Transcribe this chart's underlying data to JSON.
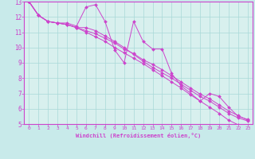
{
  "background_color": "#c8eaea",
  "plot_bg_color": "#d8f0ee",
  "grid_color": "#a8d8d8",
  "line_color": "#cc44cc",
  "marker_color": "#cc44cc",
  "border_color": "#cc44cc",
  "xlabel": "Windchill (Refroidissement éolien,°C)",
  "tick_color": "#cc44cc",
  "ylim": [
    5,
    13
  ],
  "xlim": [
    -0.5,
    23.5
  ],
  "yticks": [
    5,
    6,
    7,
    8,
    9,
    10,
    11,
    12,
    13
  ],
  "xticks": [
    0,
    1,
    2,
    3,
    4,
    5,
    6,
    7,
    8,
    9,
    10,
    11,
    12,
    13,
    14,
    15,
    16,
    17,
    18,
    19,
    20,
    21,
    22,
    23
  ],
  "series": [
    [
      13.0,
      12.1,
      11.7,
      11.6,
      11.6,
      11.4,
      12.65,
      12.8,
      11.7,
      9.85,
      9.0,
      11.7,
      10.4,
      9.9,
      9.9,
      8.3,
      7.5,
      7.0,
      6.5,
      7.0,
      6.8,
      6.1,
      5.5,
      5.3
    ],
    [
      13.0,
      12.1,
      11.7,
      11.6,
      11.5,
      11.3,
      11.3,
      11.1,
      10.75,
      10.4,
      10.0,
      9.55,
      9.1,
      8.7,
      8.35,
      8.0,
      7.6,
      7.2,
      6.8,
      6.5,
      6.1,
      5.7,
      5.4,
      5.2
    ],
    [
      13.0,
      12.1,
      11.7,
      11.6,
      11.5,
      11.3,
      11.1,
      10.9,
      10.6,
      10.3,
      9.9,
      9.6,
      9.2,
      8.9,
      8.55,
      8.15,
      7.75,
      7.35,
      6.95,
      6.65,
      6.25,
      5.85,
      5.55,
      5.25
    ],
    [
      13.0,
      12.1,
      11.7,
      11.6,
      11.5,
      11.3,
      11.0,
      10.7,
      10.4,
      10.0,
      9.65,
      9.3,
      8.95,
      8.55,
      8.15,
      7.75,
      7.35,
      6.9,
      6.5,
      6.1,
      5.7,
      5.25,
      4.95,
      4.6
    ]
  ]
}
